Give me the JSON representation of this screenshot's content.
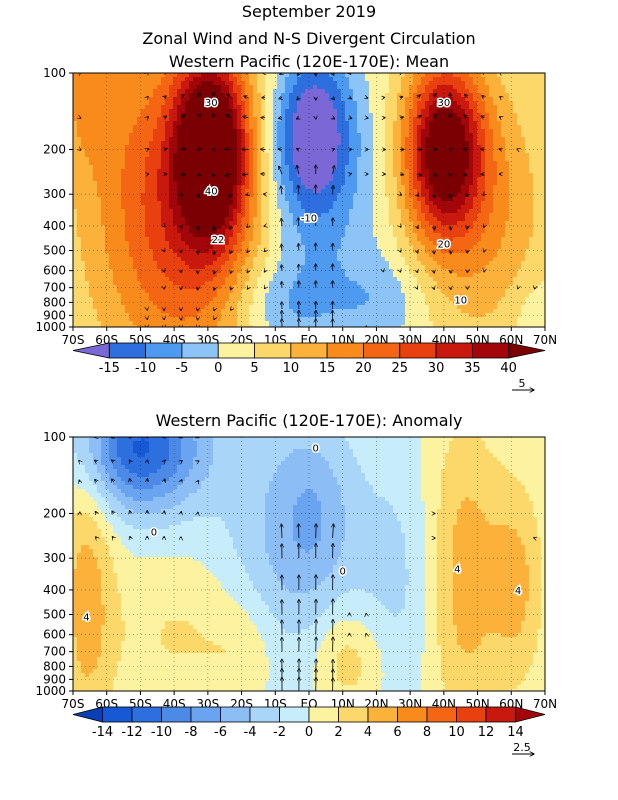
{
  "header": {
    "title": "September 2019",
    "subtitle": "Zonal Wind and N-S Divergent Circulation"
  },
  "chart_data": [
    {
      "type": "heatmap",
      "title": "Western Pacific (120E-170E): Mean",
      "xlabel": "",
      "ylabel": "",
      "x_ticks": [
        "70S",
        "60S",
        "50S",
        "40S",
        "30S",
        "20S",
        "10S",
        "EQ",
        "10N",
        "20N",
        "30N",
        "40N",
        "50N",
        "60N",
        "70N"
      ],
      "y_ticks": [
        "100",
        "200",
        "300",
        "400",
        "500",
        "600",
        "700",
        "800",
        "900",
        "1000"
      ],
      "y_tick_values": [
        100,
        200,
        300,
        400,
        500,
        600,
        700,
        800,
        900,
        1000
      ],
      "xlim": [
        -70,
        70
      ],
      "ylim": [
        1000,
        100
      ],
      "y_scale": "log-pressure",
      "colorbar": {
        "levels": [
          -20,
          -15,
          -10,
          -5,
          0,
          5,
          10,
          15,
          20,
          25,
          30,
          35,
          40,
          45
        ],
        "tick_labels": [
          "-15",
          "-10",
          "-5",
          "0",
          "5",
          "10",
          "15",
          "20",
          "25",
          "30",
          "35",
          "40"
        ],
        "tick_values": [
          -15,
          -10,
          -5,
          0,
          5,
          10,
          15,
          20,
          25,
          30,
          35,
          40
        ],
        "colors": [
          "#7b68d6",
          "#2e6fe0",
          "#4d9af0",
          "#8cc4f7",
          "#fdf2a0",
          "#fcd86a",
          "#fbb13a",
          "#f98b1c",
          "#f46614",
          "#e8400f",
          "#c9180d",
          "#a3060a",
          "#7a0004"
        ]
      },
      "contour_labels": [
        {
          "text": "30",
          "x": -29,
          "p": 130
        },
        {
          "text": "40",
          "x": -29,
          "p": 290
        },
        {
          "text": "22",
          "x": -27,
          "p": 450
        },
        {
          "text": "-10",
          "x": 0,
          "p": 370
        },
        {
          "text": "30",
          "x": 40,
          "p": 130
        },
        {
          "text": "20",
          "x": 40,
          "p": 470
        },
        {
          "text": "10",
          "x": 45,
          "p": 780
        }
      ],
      "vector_reference": {
        "label": "5",
        "value": 5
      }
    },
    {
      "type": "heatmap",
      "title": "Western Pacific (120E-170E): Anomaly",
      "xlabel": "",
      "ylabel": "",
      "x_ticks": [
        "70S",
        "60S",
        "50S",
        "40S",
        "30S",
        "20S",
        "10S",
        "EQ",
        "10N",
        "20N",
        "30N",
        "40N",
        "50N",
        "60N",
        "70N"
      ],
      "y_ticks": [
        "100",
        "200",
        "300",
        "400",
        "500",
        "600",
        "700",
        "800",
        "900",
        "1000"
      ],
      "y_tick_values": [
        100,
        200,
        300,
        400,
        500,
        600,
        700,
        800,
        900,
        1000
      ],
      "xlim": [
        -70,
        70
      ],
      "ylim": [
        1000,
        100
      ],
      "y_scale": "log-pressure",
      "colorbar": {
        "levels": [
          -16,
          -14,
          -12,
          -10,
          -8,
          -6,
          -4,
          -2,
          0,
          2,
          4,
          6,
          8,
          10,
          12,
          14,
          16
        ],
        "tick_labels": [
          "-14",
          "-12",
          "-10",
          "-8",
          "-6",
          "-4",
          "-2",
          "0",
          "2",
          "4",
          "6",
          "8",
          "10",
          "12",
          "14"
        ],
        "tick_values": [
          -14,
          -12,
          -10,
          -8,
          -6,
          -4,
          -2,
          0,
          2,
          4,
          6,
          8,
          10,
          12,
          14
        ],
        "colors": [
          "#0a3fb5",
          "#1758d4",
          "#2e6fe0",
          "#4d8ae8",
          "#6aa4f0",
          "#8cbef5",
          "#a9d6f8",
          "#c7ecfa",
          "#fdf2a0",
          "#fcd86a",
          "#fbb13a",
          "#f98b1c",
          "#f46614",
          "#e8400f",
          "#c9180d",
          "#a3060a"
        ]
      },
      "contour_labels": [
        {
          "text": "0",
          "x": 2,
          "p": 110
        },
        {
          "text": "0",
          "x": -46,
          "p": 235
        },
        {
          "text": "4",
          "x": 44,
          "p": 330
        },
        {
          "text": "4",
          "x": 62,
          "p": 400
        },
        {
          "text": "4",
          "x": -66,
          "p": 510
        },
        {
          "text": "0",
          "x": 10,
          "p": 335
        }
      ],
      "vector_reference": {
        "label": "2.5",
        "value": 2.5
      }
    }
  ]
}
